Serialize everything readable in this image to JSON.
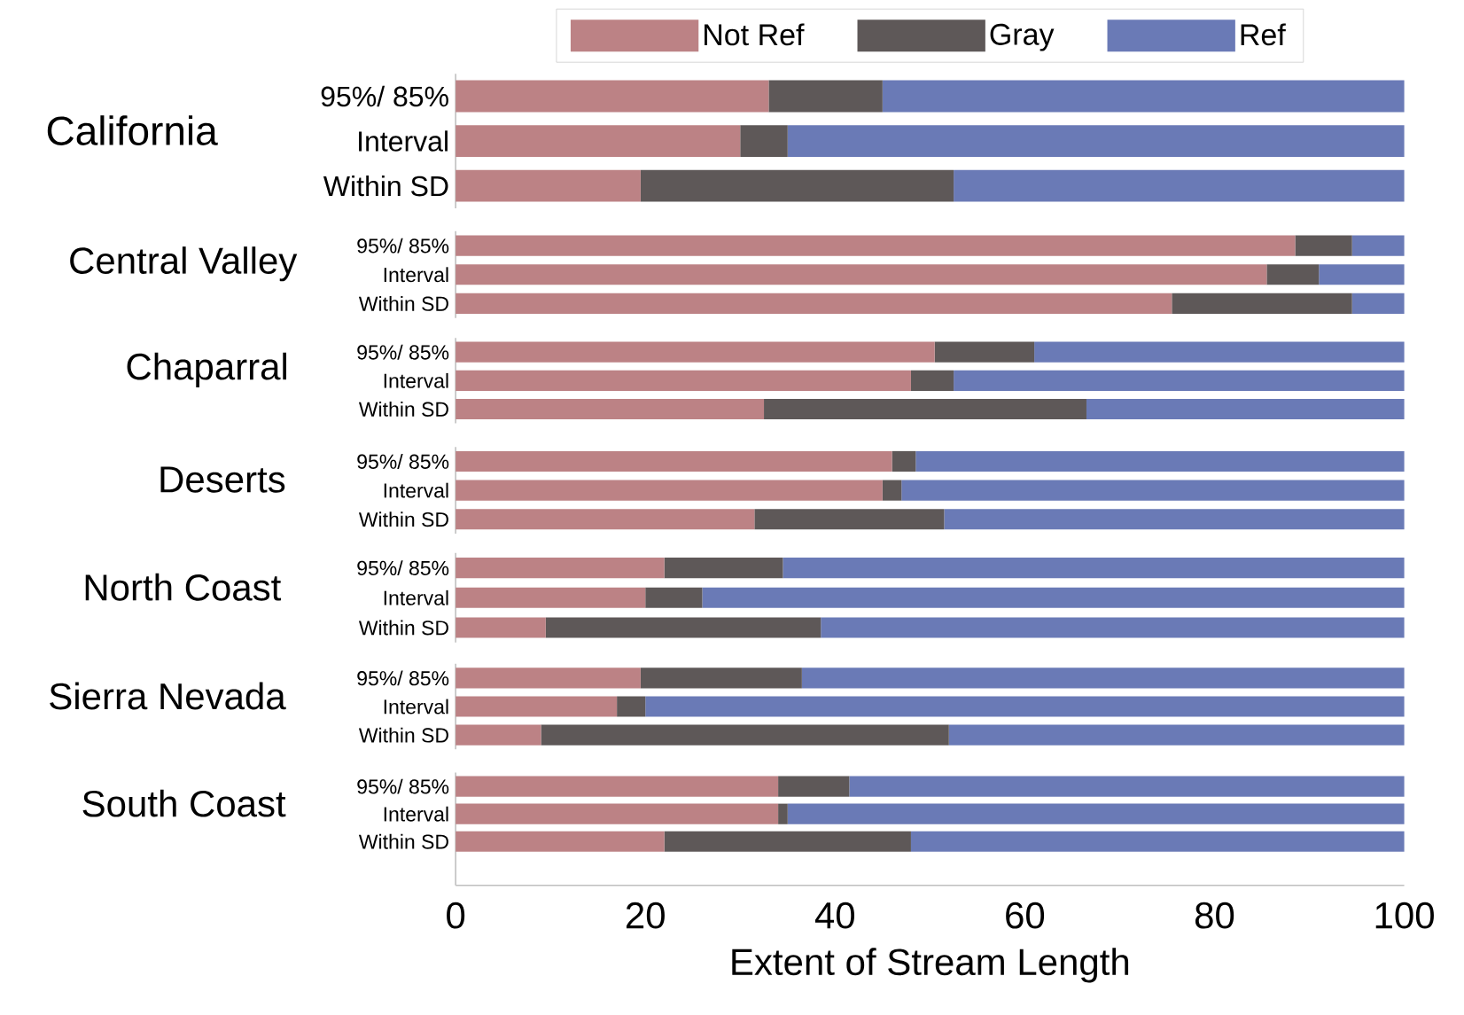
{
  "chart_data": [
    {
      "type": "bar",
      "title": "California",
      "orientation": "horizontal",
      "stacked": true,
      "legend": "top",
      "tick_labels": "y",
      "xlim": [
        0,
        100
      ],
      "categories": [
        "95%/ 85%",
        "Interval",
        "Within SD"
      ],
      "series": [
        {
          "name": "Not Ref",
          "color": "#bc8285",
          "values": [
            33,
            30,
            19.5
          ]
        },
        {
          "name": "Gray",
          "color": "#5e5858",
          "values": [
            12,
            5,
            33
          ]
        },
        {
          "name": "Ref",
          "color": "#6a7ab6",
          "values": [
            55,
            65,
            47.5
          ]
        }
      ]
    },
    {
      "type": "bar",
      "title": "Central Valley",
      "orientation": "horizontal",
      "stacked": true,
      "tick_labels": "y",
      "xlim": [
        0,
        100
      ],
      "categories": [
        "95%/ 85%",
        "Interval",
        "Within SD"
      ],
      "series": [
        {
          "color": "#bc8285",
          "values": [
            88.5,
            85.5,
            75.5
          ]
        },
        {
          "color": "#5e5858",
          "values": [
            6,
            5.5,
            19
          ]
        },
        {
          "color": "#6a7ab6",
          "values": [
            5.5,
            9,
            5.5
          ]
        }
      ]
    },
    {
      "type": "bar",
      "title": "Chaparral",
      "orientation": "horizontal",
      "stacked": true,
      "tick_labels": "y",
      "xlim": [
        0,
        100
      ],
      "categories": [
        "95%/ 85%",
        "Interval",
        "Within SD"
      ],
      "series": [
        {
          "color": "#bc8285",
          "values": [
            50.5,
            48,
            32.5
          ]
        },
        {
          "color": "#5e5858",
          "values": [
            10.5,
            4.5,
            34
          ]
        },
        {
          "color": "#6a7ab6",
          "values": [
            39,
            47.5,
            33.5
          ]
        }
      ]
    },
    {
      "type": "bar",
      "title": "Deserts",
      "orientation": "horizontal",
      "stacked": true,
      "tick_labels": "y",
      "xlim": [
        0,
        100
      ],
      "categories": [
        "95%/ 85%",
        "Interval",
        "Within SD"
      ],
      "series": [
        {
          "color": "#bc8285",
          "values": [
            46,
            45,
            31.5
          ]
        },
        {
          "color": "#5e5858",
          "values": [
            2.5,
            2,
            20
          ]
        },
        {
          "color": "#6a7ab6",
          "values": [
            51.5,
            53,
            48.5
          ]
        }
      ]
    },
    {
      "type": "bar",
      "title": "North Coast",
      "orientation": "horizontal",
      "stacked": true,
      "tick_labels": "y",
      "xlim": [
        0,
        100
      ],
      "categories": [
        "95%/ 85%",
        "Interval",
        "Within SD"
      ],
      "series": [
        {
          "color": "#bc8285",
          "values": [
            22,
            20,
            9.5
          ]
        },
        {
          "color": "#5e5858",
          "values": [
            12.5,
            6,
            29
          ]
        },
        {
          "color": "#6a7ab6",
          "values": [
            65.5,
            74,
            61.5
          ]
        }
      ]
    },
    {
      "type": "bar",
      "title": "Sierra Nevada",
      "orientation": "horizontal",
      "stacked": true,
      "tick_labels": "y",
      "xlim": [
        0,
        100
      ],
      "categories": [
        "95%/ 85%",
        "Interval",
        "Within SD"
      ],
      "series": [
        {
          "color": "#bc8285",
          "values": [
            19.5,
            17,
            9
          ]
        },
        {
          "color": "#5e5858",
          "values": [
            17,
            3,
            43
          ]
        },
        {
          "color": "#6a7ab6",
          "values": [
            63.5,
            80,
            48
          ]
        }
      ]
    },
    {
      "type": "bar",
      "title": "South Coast",
      "orientation": "horizontal",
      "stacked": true,
      "xlim": [
        0,
        100
      ],
      "xticks": [
        0,
        20,
        40,
        60,
        80,
        100
      ],
      "xlabel": "Extent of Stream Length",
      "categories": [
        "95%/ 85%",
        "Interval",
        "Within SD"
      ],
      "series": [
        {
          "color": "#bc8285",
          "values": [
            34,
            34,
            22
          ]
        },
        {
          "color": "#5e5858",
          "values": [
            7.5,
            1,
            26
          ]
        },
        {
          "color": "#6a7ab6",
          "values": [
            58.5,
            65,
            52
          ]
        }
      ]
    }
  ]
}
